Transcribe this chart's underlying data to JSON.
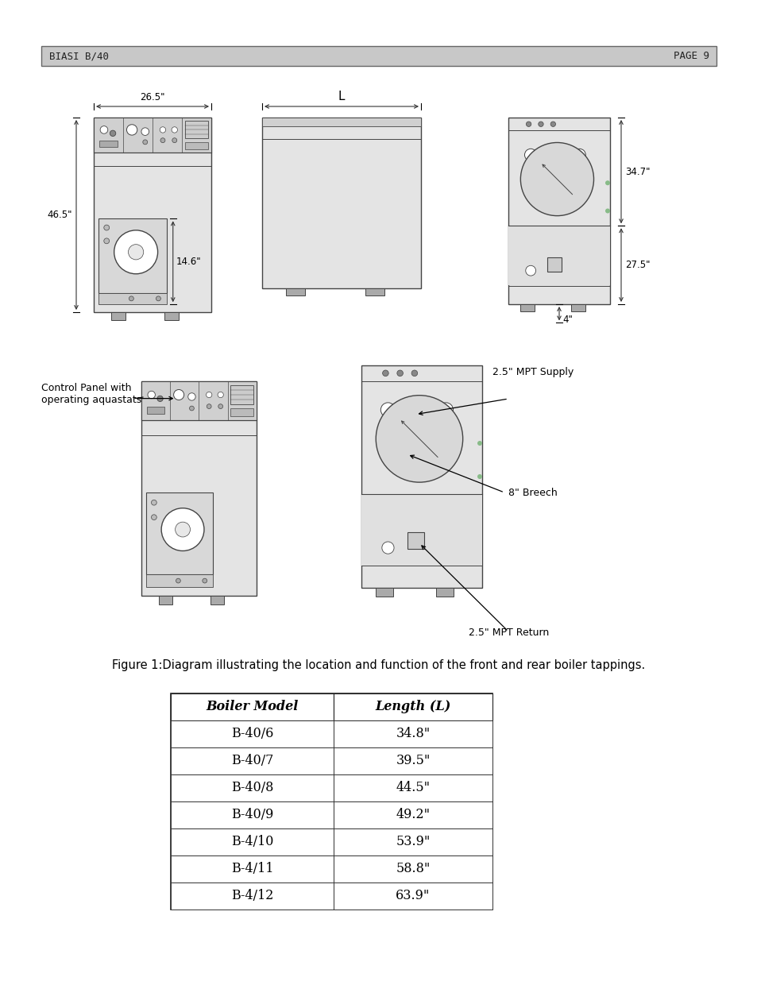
{
  "header_left": "BIASI B/40",
  "header_right": "PAGE 9",
  "header_bg": "#c8c8c8",
  "figure_caption": "Figure 1:Diagram illustrating the location and function of the front and rear boiler tappings.",
  "table_headers": [
    "Boiler Model",
    "Length (L)"
  ],
  "table_rows": [
    [
      "B-40/6",
      "34.8\""
    ],
    [
      "B-40/7",
      "39.5\""
    ],
    [
      "B-40/8",
      "44.5\""
    ],
    [
      "B-40/9",
      "49.2\""
    ],
    [
      "B-4/10",
      "53.9\""
    ],
    [
      "B-4/11",
      "58.8\""
    ],
    [
      "B-4/12",
      "63.9\""
    ]
  ],
  "dim_front_width": "26.5\"",
  "dim_front_height": "46.5\"",
  "dim_front_burner": "14.6\"",
  "dim_side_length": "L",
  "dim_rear_height1": "34.7\"",
  "dim_rear_height2": "27.5\"",
  "dim_rear_bottom": "4\"",
  "label_control_panel": "Control Panel with\noperating aquastats",
  "label_supply": "2.5\" MPT Supply",
  "label_breech": "8\" Breech",
  "label_return": "2.5\" MPT Return",
  "bg_color": "#ffffff",
  "lc": "#444444",
  "boiler_fill": "#e4e4e4",
  "panel_fill": "#d0d0d0",
  "header_font_size": 9,
  "caption_font_size": 10.5,
  "table_font_size": 11.5,
  "dim_font_size": 8.5,
  "label_font_size": 9
}
